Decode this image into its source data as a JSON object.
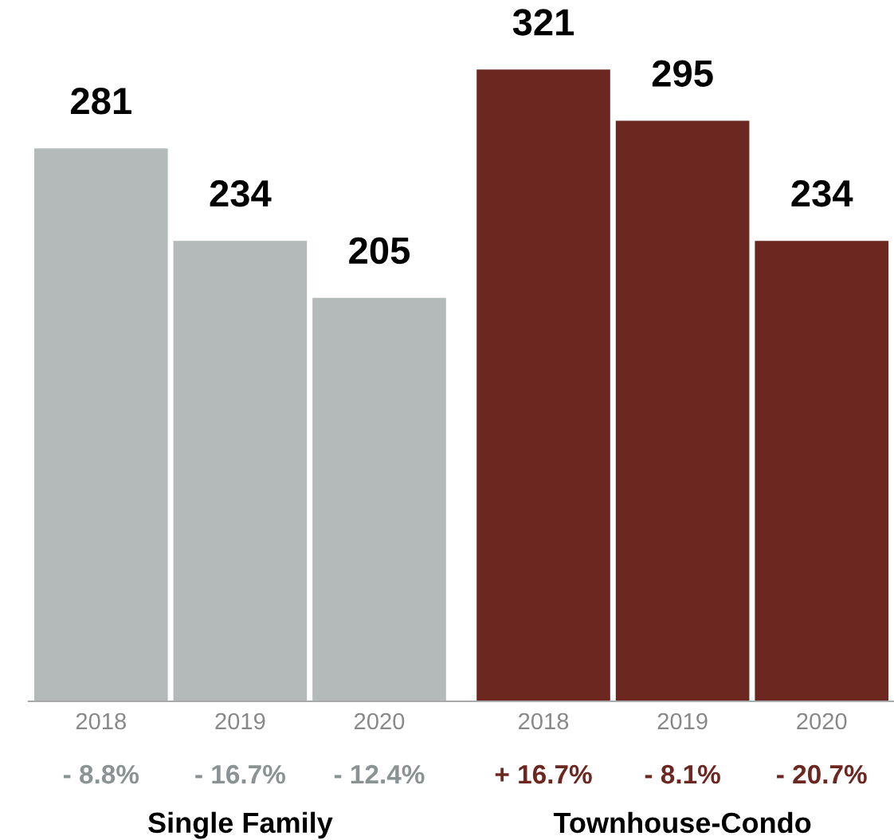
{
  "chart_data": {
    "type": "bar",
    "categories": [
      "2018",
      "2019",
      "2020",
      "2018",
      "2019",
      "2020"
    ],
    "values": [
      281,
      234,
      205,
      321,
      295,
      234
    ],
    "colors": [
      "#b4b9ba",
      "#b4b9ba",
      "#b4b9ba",
      "#6b2720",
      "#6b2720",
      "#6b2720"
    ],
    "data_labels": true,
    "grid": false,
    "legend": false,
    "annotations": [
      "- 8.8%",
      "- 16.7%",
      "- 12.4%",
      "+ 16.7%",
      "- 8.1%",
      "- 20.7%",
      "Single Family",
      "Townhouse-Condo"
    ]
  }
}
